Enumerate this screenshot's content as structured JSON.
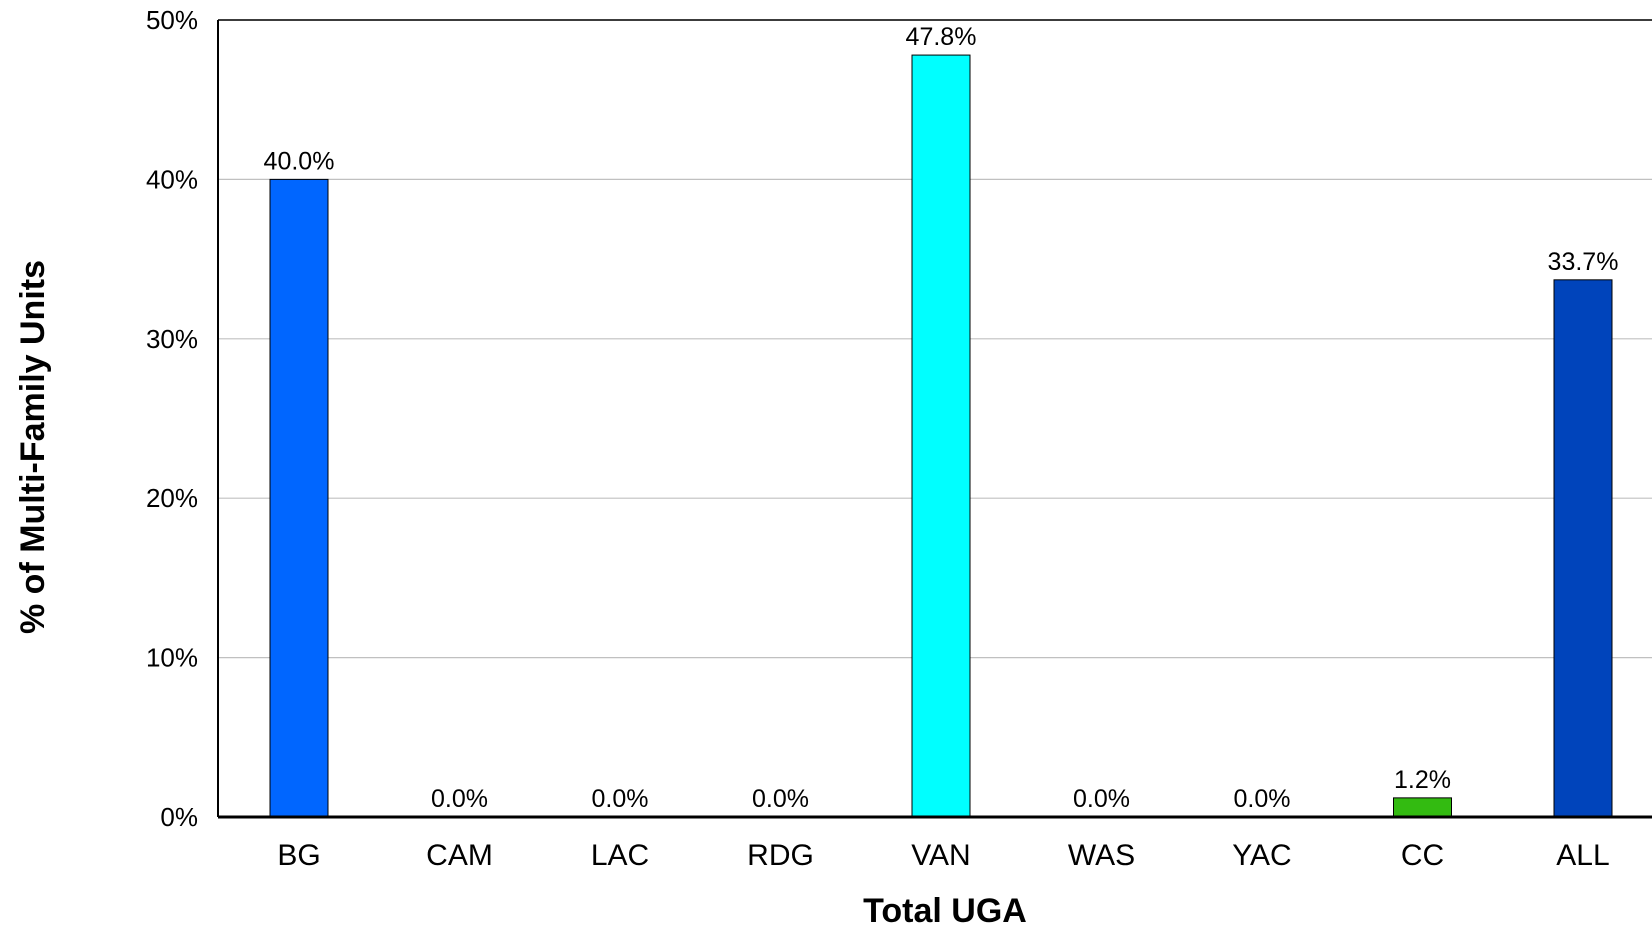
{
  "chart_data": {
    "type": "bar",
    "title": "",
    "xlabel": "Total UGA",
    "ylabel": "% of Multi-Family Units",
    "categories": [
      "BG",
      "CAM",
      "LAC",
      "RDG",
      "VAN",
      "WAS",
      "YAC",
      "CC",
      "ALL"
    ],
    "values": [
      40.0,
      0.0,
      0.0,
      0.0,
      47.8,
      0.0,
      0.0,
      1.2,
      33.7
    ],
    "data_labels": [
      "40.0%",
      "0.0%",
      "0.0%",
      "0.0%",
      "47.8%",
      "0.0%",
      "0.0%",
      "1.2%",
      "33.7%"
    ],
    "bar_colors": [
      "#0066ff",
      "#0066ff",
      "#0066ff",
      "#0066ff",
      "#00ffff",
      "#0066ff",
      "#0066ff",
      "#33bb11",
      "#0044bb"
    ],
    "ylim": [
      0,
      50
    ],
    "y_ticks": [
      0,
      10,
      20,
      30,
      40,
      50
    ],
    "y_tick_labels": [
      "0%",
      "10%",
      "20%",
      "30%",
      "40%",
      "50%"
    ],
    "grid": true,
    "gridline_color": "#c0c0c0",
    "legend": "none"
  }
}
